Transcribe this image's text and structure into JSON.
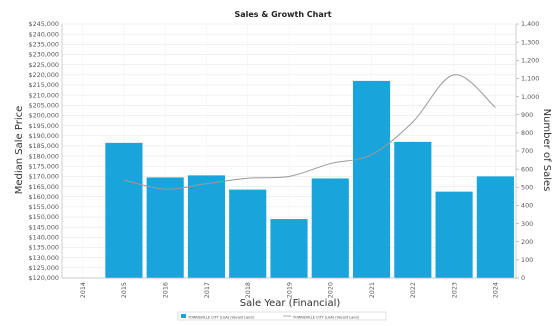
{
  "chart_data": {
    "type": "bar",
    "title": "Sales & Growth Chart",
    "xlabel": "Sale Year (Financial)",
    "ylabel": "Median Sale Price",
    "y2label": "Number of Sales",
    "x_ticks": [
      "2014",
      "2015",
      "2016",
      "2017",
      "2018",
      "2019",
      "2020",
      "2021",
      "2022",
      "2023",
      "2024"
    ],
    "categories": [
      "2015",
      "2016",
      "2017",
      "2018",
      "2019",
      "2020",
      "2021",
      "2022",
      "2023",
      "2024"
    ],
    "ylim": [
      120000,
      245000
    ],
    "y_ticks": [
      "$120,000",
      "$125,000",
      "$130,000",
      "$135,000",
      "$140,000",
      "$145,000",
      "$150,000",
      "$155,000",
      "$160,000",
      "$165,000",
      "$170,000",
      "$175,000",
      "$180,000",
      "$185,000",
      "$190,000",
      "$195,000",
      "$200,000",
      "$205,000",
      "$210,000",
      "$215,000",
      "$220,000",
      "$225,000",
      "$230,000",
      "$235,000",
      "$240,000",
      "$245,000"
    ],
    "y2lim": [
      0,
      1400
    ],
    "y2_ticks": [
      "0",
      "100",
      "200",
      "300",
      "400",
      "500",
      "600",
      "700",
      "800",
      "900",
      "1,000",
      "1,100",
      "1,200",
      "1,300",
      "1,400"
    ],
    "series": [
      {
        "name": "TOWNSVILLE CITY (LGA) (Vacant Land)",
        "type": "bar",
        "axis": "left",
        "color": "#1aa4dc",
        "values": [
          186500,
          169500,
          170500,
          163500,
          149000,
          169000,
          217000,
          187000,
          162500,
          170000
        ]
      },
      {
        "name": "TOWNSVILLE CITY (LGA) (Vacant Land)",
        "type": "line",
        "axis": "right",
        "color": "#999999",
        "values": [
          540,
          490,
          520,
          550,
          560,
          630,
          680,
          860,
          1120,
          940
        ]
      }
    ],
    "grid": true,
    "legend_position": "bottom"
  }
}
